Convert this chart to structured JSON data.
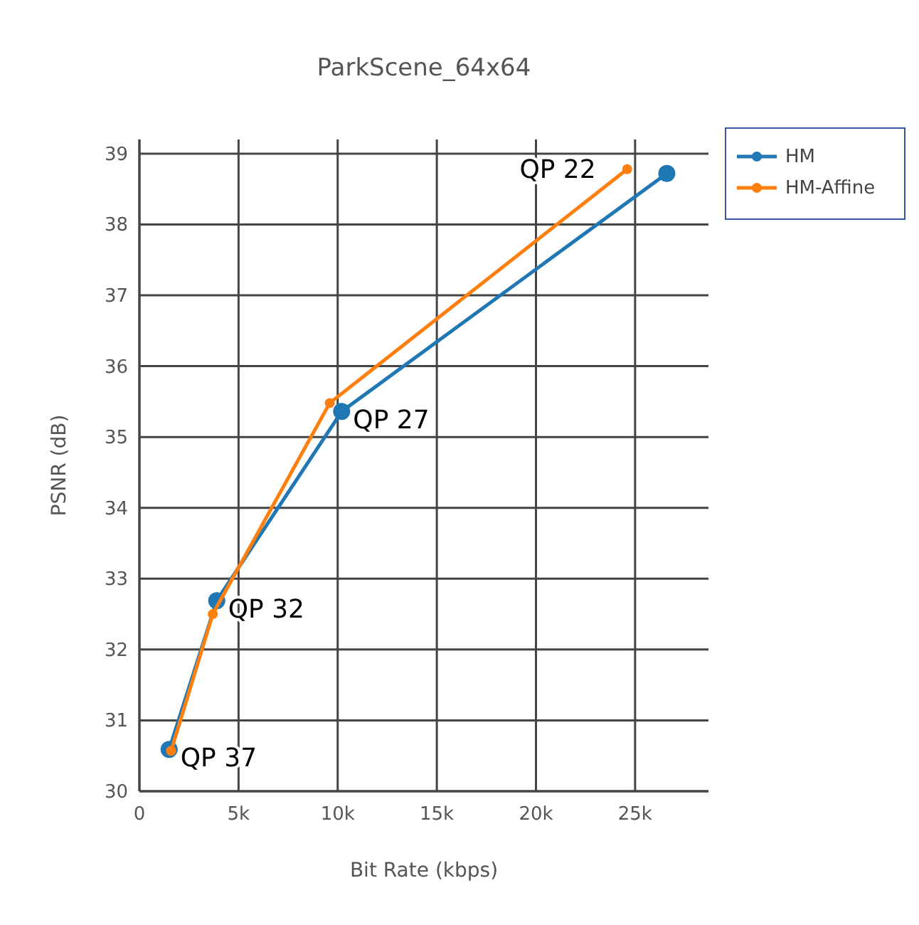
{
  "chart_data": {
    "type": "line",
    "title": "ParkScene_64x64",
    "xlabel": "Bit Rate (kbps)",
    "ylabel": "PSNR (dB)",
    "xlim": [
      0,
      28700
    ],
    "ylim": [
      30,
      39.2
    ],
    "xticks": [
      0,
      {
        "value": 5000,
        "label": "5k"
      },
      {
        "value": 10000,
        "label": "10k"
      },
      {
        "value": 15000,
        "label": "15k"
      },
      {
        "value": 20000,
        "label": "20k"
      },
      {
        "value": 25000,
        "label": "25k"
      }
    ],
    "yticks": [
      30,
      31,
      32,
      33,
      34,
      35,
      36,
      37,
      38,
      39
    ],
    "grid": true,
    "legend": "top right",
    "marker": "circle",
    "line_style": "solid",
    "series": [
      {
        "name": "HM",
        "color": "#1f77b4",
        "x": [
          1500,
          3900,
          10200,
          26600
        ],
        "values": [
          30.59,
          32.69,
          35.36,
          38.72
        ]
      },
      {
        "name": "HM-Affine",
        "color": "#ff7f0e",
        "x": [
          1600,
          3700,
          9600,
          24600
        ],
        "values": [
          30.57,
          32.5,
          35.48,
          38.78
        ]
      }
    ],
    "annotations": [
      {
        "text": "QP 22",
        "x": 24600,
        "y": 38.78
      },
      {
        "text": "QP 27",
        "x": 10200,
        "y": 35.36
      },
      {
        "text": "QP 32",
        "x": 3900,
        "y": 32.69
      },
      {
        "text": "QP 37",
        "x": 1500,
        "y": 30.59
      }
    ]
  }
}
